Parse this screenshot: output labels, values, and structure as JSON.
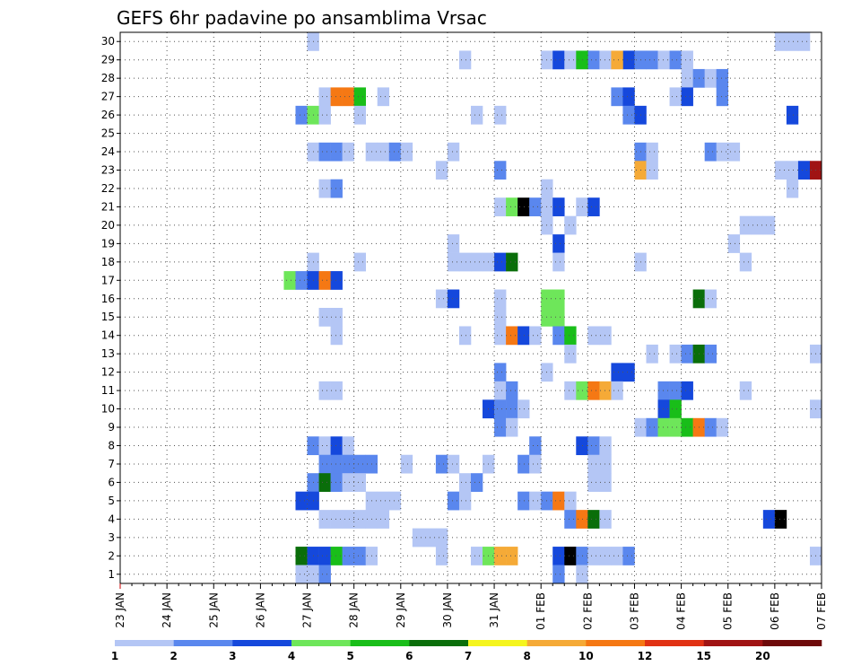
{
  "chart_data": {
    "type": "heatmap",
    "title": "GEFS 6hr padavine po ansamblima Vrsac",
    "xlabel": "",
    "ylabel": "",
    "x_tick_labels": [
      "23 JAN",
      "24 JAN",
      "25 JAN",
      "26 JAN",
      "27 JAN",
      "28 JAN",
      "29 JAN",
      "30 JAN",
      "31 JAN",
      "01 FEB",
      "02 FEB",
      "03 FEB",
      "04 FEB",
      "05 FEB",
      "06 FEB",
      "07 FEB"
    ],
    "y_tick_labels": [
      "1",
      "2",
      "3",
      "4",
      "5",
      "6",
      "7",
      "8",
      "9",
      "10",
      "11",
      "12",
      "13",
      "14",
      "15",
      "16",
      "17",
      "18",
      "19",
      "20",
      "21",
      "22",
      "23",
      "24",
      "25",
      "26",
      "27",
      "28",
      "29",
      "30"
    ],
    "xlim": [
      0,
      60
    ],
    "ylim": [
      0.5,
      30.5
    ],
    "grid": true,
    "step_hours": 6,
    "legend": {
      "placement": "bottom",
      "labels": [
        "1",
        "2",
        "3",
        "4",
        "5",
        "6",
        "7",
        "8",
        "10",
        "12",
        "15",
        "20"
      ],
      "colors": [
        "#b4c6f5",
        "#5a87ee",
        "#1548dc",
        "#6ee65a",
        "#19be19",
        "#0a6e0a",
        "#f5f51e",
        "#f5aa37",
        "#f57814",
        "#e13214",
        "#a01414",
        "#6e0a0a"
      ]
    },
    "cells": [
      [
        16,
        30,
        1
      ],
      [
        56,
        30,
        1
      ],
      [
        57,
        30,
        1
      ],
      [
        58,
        30,
        1
      ],
      [
        36,
        29,
        1
      ],
      [
        40,
        29,
        2
      ],
      [
        41,
        29,
        1
      ],
      [
        43,
        29,
        3
      ],
      [
        44,
        29,
        2
      ],
      [
        37,
        29,
        3
      ],
      [
        38,
        29,
        1
      ],
      [
        39,
        29,
        5
      ],
      [
        42,
        29,
        8
      ],
      [
        29,
        29,
        1
      ],
      [
        45,
        29,
        2
      ],
      [
        46,
        29,
        1
      ],
      [
        47,
        29,
        2
      ],
      [
        48,
        29,
        1
      ],
      [
        48,
        28,
        1
      ],
      [
        49,
        28,
        2
      ],
      [
        50,
        28,
        1
      ],
      [
        51,
        28,
        2
      ],
      [
        17,
        27,
        1
      ],
      [
        18,
        27,
        9
      ],
      [
        19,
        27,
        9
      ],
      [
        20,
        27,
        5
      ],
      [
        22,
        27,
        1
      ],
      [
        42,
        27,
        2
      ],
      [
        43,
        27,
        3
      ],
      [
        47,
        27,
        1
      ],
      [
        48,
        27,
        3
      ],
      [
        51,
        27,
        2
      ],
      [
        15,
        26,
        2
      ],
      [
        16,
        26,
        4
      ],
      [
        17,
        26,
        1
      ],
      [
        20,
        26,
        1
      ],
      [
        30,
        26,
        1
      ],
      [
        32,
        26,
        1
      ],
      [
        43,
        26,
        2
      ],
      [
        44,
        26,
        3
      ],
      [
        57,
        26,
        3
      ],
      [
        16,
        24,
        1
      ],
      [
        17,
        24,
        2
      ],
      [
        18,
        24,
        2
      ],
      [
        19,
        24,
        1
      ],
      [
        21,
        24,
        1
      ],
      [
        22,
        24,
        1
      ],
      [
        23,
        24,
        2
      ],
      [
        24,
        24,
        1
      ],
      [
        28,
        24,
        1
      ],
      [
        44,
        24,
        2
      ],
      [
        45,
        24,
        1
      ],
      [
        50,
        24,
        2
      ],
      [
        51,
        24,
        1
      ],
      [
        52,
        24,
        1
      ],
      [
        44,
        23,
        8
      ],
      [
        45,
        23,
        1
      ],
      [
        27,
        23,
        1
      ],
      [
        32,
        23,
        2
      ],
      [
        56,
        23,
        1
      ],
      [
        57,
        23,
        1
      ],
      [
        58,
        23,
        3
      ],
      [
        59,
        23,
        11
      ],
      [
        17,
        22,
        1
      ],
      [
        18,
        22,
        2
      ],
      [
        36,
        22,
        1
      ],
      [
        57,
        22,
        1
      ],
      [
        32,
        21,
        1
      ],
      [
        33,
        21,
        4
      ],
      [
        34,
        21,
        14
      ],
      [
        35,
        21,
        2
      ],
      [
        36,
        21,
        1
      ],
      [
        37,
        21,
        3
      ],
      [
        39,
        21,
        1
      ],
      [
        40,
        21,
        3
      ],
      [
        36,
        20,
        1
      ],
      [
        38,
        20,
        1
      ],
      [
        53,
        20,
        1
      ],
      [
        54,
        20,
        1
      ],
      [
        55,
        20,
        1
      ],
      [
        37,
        19,
        3
      ],
      [
        28,
        19,
        1
      ],
      [
        52,
        19,
        1
      ],
      [
        16,
        18,
        1
      ],
      [
        20,
        18,
        1
      ],
      [
        28,
        18,
        1
      ],
      [
        29,
        18,
        1
      ],
      [
        30,
        18,
        1
      ],
      [
        31,
        18,
        1
      ],
      [
        32,
        18,
        3
      ],
      [
        33,
        18,
        6
      ],
      [
        37,
        18,
        1
      ],
      [
        44,
        18,
        1
      ],
      [
        53,
        18,
        1
      ],
      [
        14,
        17,
        4
      ],
      [
        15,
        17,
        2
      ],
      [
        16,
        17,
        3
      ],
      [
        17,
        17,
        9
      ],
      [
        18,
        17,
        3
      ],
      [
        27,
        16,
        1
      ],
      [
        28,
        16,
        3
      ],
      [
        32,
        16,
        1
      ],
      [
        36,
        16,
        4
      ],
      [
        37,
        16,
        4
      ],
      [
        49,
        16,
        6
      ],
      [
        50,
        16,
        1
      ],
      [
        17,
        15,
        1
      ],
      [
        18,
        15,
        1
      ],
      [
        32,
        15,
        1
      ],
      [
        36,
        15,
        4
      ],
      [
        37,
        15,
        4
      ],
      [
        18,
        14,
        1
      ],
      [
        29,
        14,
        1
      ],
      [
        32,
        14,
        1
      ],
      [
        33,
        14,
        9
      ],
      [
        34,
        14,
        3
      ],
      [
        35,
        14,
        1
      ],
      [
        37,
        14,
        2
      ],
      [
        38,
        14,
        5
      ],
      [
        40,
        14,
        1
      ],
      [
        41,
        14,
        1
      ],
      [
        38,
        13,
        1
      ],
      [
        45,
        13,
        1
      ],
      [
        47,
        13,
        1
      ],
      [
        48,
        13,
        2
      ],
      [
        49,
        13,
        6
      ],
      [
        50,
        13,
        2
      ],
      [
        59,
        13,
        1
      ],
      [
        32,
        12,
        2
      ],
      [
        36,
        12,
        1
      ],
      [
        42,
        12,
        3
      ],
      [
        43,
        12,
        3
      ],
      [
        17,
        11,
        1
      ],
      [
        18,
        11,
        1
      ],
      [
        32,
        11,
        1
      ],
      [
        33,
        11,
        2
      ],
      [
        38,
        11,
        1
      ],
      [
        39,
        11,
        4
      ],
      [
        40,
        11,
        9
      ],
      [
        41,
        11,
        8
      ],
      [
        42,
        11,
        1
      ],
      [
        46,
        11,
        2
      ],
      [
        47,
        11,
        2
      ],
      [
        48,
        11,
        3
      ],
      [
        53,
        11,
        1
      ],
      [
        31,
        10,
        3
      ],
      [
        32,
        10,
        2
      ],
      [
        33,
        10,
        2
      ],
      [
        34,
        10,
        1
      ],
      [
        46,
        10,
        3
      ],
      [
        47,
        10,
        5
      ],
      [
        59,
        10,
        1
      ],
      [
        32,
        9,
        2
      ],
      [
        33,
        9,
        1
      ],
      [
        44,
        9,
        1
      ],
      [
        45,
        9,
        2
      ],
      [
        46,
        9,
        4
      ],
      [
        47,
        9,
        4
      ],
      [
        48,
        9,
        5
      ],
      [
        49,
        9,
        9
      ],
      [
        50,
        9,
        2
      ],
      [
        51,
        9,
        1
      ],
      [
        16,
        8,
        2
      ],
      [
        17,
        8,
        1
      ],
      [
        18,
        8,
        3
      ],
      [
        19,
        8,
        1
      ],
      [
        35,
        8,
        2
      ],
      [
        39,
        8,
        3
      ],
      [
        40,
        8,
        2
      ],
      [
        41,
        8,
        1
      ],
      [
        17,
        7,
        2
      ],
      [
        18,
        7,
        2
      ],
      [
        19,
        7,
        2
      ],
      [
        20,
        7,
        2
      ],
      [
        21,
        7,
        2
      ],
      [
        24,
        7,
        1
      ],
      [
        27,
        7,
        2
      ],
      [
        28,
        7,
        1
      ],
      [
        31,
        7,
        1
      ],
      [
        34,
        7,
        2
      ],
      [
        35,
        7,
        1
      ],
      [
        40,
        7,
        1
      ],
      [
        41,
        7,
        1
      ],
      [
        16,
        6,
        2
      ],
      [
        17,
        6,
        6
      ],
      [
        18,
        6,
        2
      ],
      [
        19,
        6,
        1
      ],
      [
        20,
        6,
        1
      ],
      [
        29,
        6,
        1
      ],
      [
        30,
        6,
        2
      ],
      [
        40,
        6,
        1
      ],
      [
        41,
        6,
        1
      ],
      [
        15,
        5,
        3
      ],
      [
        16,
        5,
        3
      ],
      [
        21,
        5,
        1
      ],
      [
        22,
        5,
        1
      ],
      [
        23,
        5,
        1
      ],
      [
        28,
        5,
        2
      ],
      [
        29,
        5,
        1
      ],
      [
        34,
        5,
        2
      ],
      [
        35,
        5,
        1
      ],
      [
        36,
        5,
        2
      ],
      [
        37,
        5,
        9
      ],
      [
        38,
        5,
        1
      ],
      [
        17,
        4,
        1
      ],
      [
        18,
        4,
        1
      ],
      [
        19,
        4,
        1
      ],
      [
        20,
        4,
        1
      ],
      [
        21,
        4,
        1
      ],
      [
        22,
        4,
        1
      ],
      [
        38,
        4,
        2
      ],
      [
        39,
        4,
        9
      ],
      [
        40,
        4,
        6
      ],
      [
        41,
        4,
        1
      ],
      [
        55,
        4,
        3
      ],
      [
        56,
        4,
        14
      ],
      [
        25,
        3,
        1
      ],
      [
        26,
        3,
        1
      ],
      [
        27,
        3,
        1
      ],
      [
        15,
        2,
        6
      ],
      [
        16,
        2,
        3
      ],
      [
        17,
        2,
        3
      ],
      [
        18,
        2,
        5
      ],
      [
        19,
        2,
        2
      ],
      [
        20,
        2,
        2
      ],
      [
        21,
        2,
        1
      ],
      [
        27,
        2,
        1
      ],
      [
        30,
        2,
        1
      ],
      [
        31,
        2,
        4
      ],
      [
        32,
        2,
        8
      ],
      [
        33,
        2,
        8
      ],
      [
        37,
        2,
        3
      ],
      [
        38,
        2,
        14
      ],
      [
        39,
        2,
        2
      ],
      [
        40,
        2,
        1
      ],
      [
        41,
        2,
        1
      ],
      [
        42,
        2,
        1
      ],
      [
        43,
        2,
        2
      ],
      [
        59,
        2,
        1
      ],
      [
        15,
        1,
        1
      ],
      [
        16,
        1,
        1
      ],
      [
        17,
        1,
        2
      ],
      [
        37,
        1,
        2
      ],
      [
        39,
        1,
        1
      ]
    ]
  }
}
